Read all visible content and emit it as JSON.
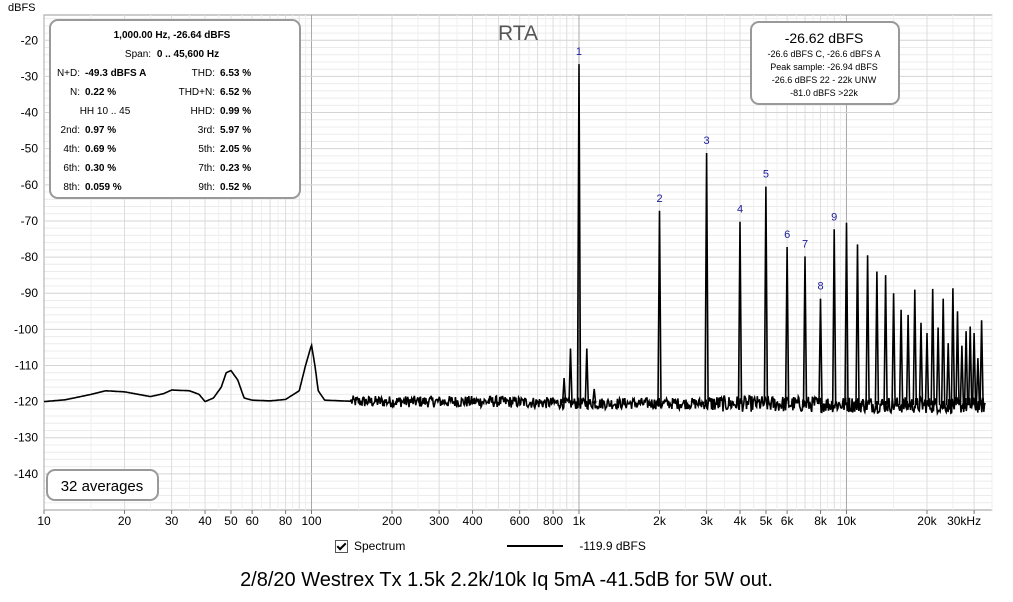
{
  "chart_data": {
    "type": "line",
    "title": "RTA",
    "ylabel": "dBFS",
    "xlabel": "",
    "x_scale": "log",
    "xlim": [
      10,
      35000
    ],
    "ylim": [
      -150,
      -13
    ],
    "grid": true,
    "y_ticks": [
      -20,
      -30,
      -40,
      -50,
      -60,
      -70,
      -80,
      -90,
      -100,
      -110,
      -120,
      -130,
      -140
    ],
    "y_tick_labels": [
      "-20",
      "-30",
      "-40",
      "-50",
      "-60",
      "-70",
      "-80",
      "-90",
      "-100",
      "-110",
      "-120",
      "-130",
      "-140"
    ],
    "x_ticks": [
      10,
      20,
      30,
      40,
      50,
      60,
      80,
      100,
      200,
      300,
      400,
      600,
      800,
      1000,
      2000,
      3000,
      4000,
      5000,
      6000,
      8000,
      10000,
      20000,
      30000
    ],
    "x_tick_labels": [
      "10",
      "20",
      "30",
      "40",
      "50",
      "60",
      "80",
      "100",
      "200",
      "300",
      "400",
      "600",
      "800",
      "1k",
      "2k",
      "3k",
      "4k",
      "5k",
      "6k",
      "8k",
      "10k",
      "20k",
      "30kHz"
    ],
    "series": [
      {
        "name": "Spectrum",
        "legend_value": "-119.9 dBFS",
        "color": "#000000",
        "noise_floor": [
          [
            10,
            -120
          ],
          [
            12,
            -119.5
          ],
          [
            15,
            -118
          ],
          [
            17,
            -117
          ],
          [
            20,
            -117.3
          ],
          [
            25,
            -118.6
          ],
          [
            28,
            -117.8
          ],
          [
            30,
            -116.8
          ],
          [
            35,
            -117
          ],
          [
            38,
            -118
          ],
          [
            40,
            -120
          ],
          [
            43,
            -119
          ],
          [
            46,
            -116
          ],
          [
            48,
            -112
          ],
          [
            50,
            -111.4
          ],
          [
            53,
            -114
          ],
          [
            56,
            -119
          ],
          [
            60,
            -119.6
          ],
          [
            70,
            -119.8
          ],
          [
            80,
            -119.4
          ],
          [
            90,
            -117
          ],
          [
            95,
            -110
          ],
          [
            100,
            -104.3
          ],
          [
            103,
            -110
          ],
          [
            106,
            -117
          ],
          [
            112,
            -119.6
          ],
          [
            150,
            -120
          ],
          [
            200,
            -120
          ],
          [
            300,
            -120
          ],
          [
            500,
            -120
          ],
          [
            700,
            -120.3
          ],
          [
            1000,
            -120.5
          ],
          [
            2000,
            -120.5
          ],
          [
            5000,
            -120.6
          ],
          [
            10000,
            -120.8
          ],
          [
            20000,
            -121
          ],
          [
            33000,
            -121
          ]
        ],
        "harmonics": [
          {
            "label": "1",
            "freq": 1000,
            "level": -26.6
          },
          {
            "label": "2",
            "freq": 2000,
            "level": -67.2
          },
          {
            "label": "3",
            "freq": 3000,
            "level": -51.2
          },
          {
            "label": "4",
            "freq": 4000,
            "level": -70.2
          },
          {
            "label": "5",
            "freq": 5000,
            "level": -60.5
          },
          {
            "label": "6",
            "freq": 6000,
            "level": -77.2
          },
          {
            "label": "7",
            "freq": 7000,
            "level": -79.8
          },
          {
            "label": "8",
            "freq": 8000,
            "level": -91.5
          },
          {
            "label": "9",
            "freq": 9000,
            "level": -72.3
          }
        ],
        "higher_harmonics": [
          [
            10000,
            -70.5
          ],
          [
            11000,
            -76.5
          ],
          [
            12000,
            -79.5
          ],
          [
            13000,
            -84
          ],
          [
            14000,
            -85
          ],
          [
            15000,
            -90
          ],
          [
            16000,
            -94.6
          ],
          [
            17000,
            -96
          ],
          [
            18000,
            -89
          ],
          [
            19000,
            -98.2
          ],
          [
            20000,
            -101
          ],
          [
            21000,
            -88.8
          ],
          [
            22000,
            -99.5
          ],
          [
            23000,
            -91.5
          ],
          [
            24000,
            -103.8
          ],
          [
            25000,
            -88.6
          ],
          [
            26000,
            -95
          ],
          [
            27000,
            -104.5
          ],
          [
            28000,
            -100.5
          ],
          [
            29000,
            -99.2
          ],
          [
            30000,
            -101
          ],
          [
            31000,
            -108
          ],
          [
            32000,
            -97.5
          ]
        ],
        "other_peaks": [
          [
            930,
            -105.3
          ],
          [
            1070,
            -105.3
          ],
          [
            880,
            -113.5
          ],
          [
            1140,
            -116.5
          ]
        ]
      }
    ],
    "legend_placement": "bottom-center"
  },
  "stats_box": {
    "line1": "1,000.00 Hz, -26.64 dBFS",
    "span_label": "Span:",
    "span_value": "0 .. 45,600 Hz",
    "rows": [
      {
        "l_label": "N+D:",
        "l_value": "-49.3 dBFS A",
        "r_label": "THD:",
        "r_value": "6.53 %"
      },
      {
        "l_label": "N:",
        "l_value": "0.22 %",
        "r_label": "THD+N:",
        "r_value": "6.52 %"
      },
      {
        "l_label": "HH 10 .. 45",
        "l_value": "",
        "r_label": "HHD:",
        "r_value": "0.99 %"
      },
      {
        "l_label": "2nd:",
        "l_value": "0.97 %",
        "r_label": "3rd:",
        "r_value": "5.97 %"
      },
      {
        "l_label": "4th:",
        "l_value": "0.69 %",
        "r_label": "5th:",
        "r_value": "2.05 %"
      },
      {
        "l_label": "6th:",
        "l_value": "0.30 %",
        "r_label": "7th:",
        "r_value": "0.23 %"
      },
      {
        "l_label": "8th:",
        "l_value": "0.059 %",
        "r_label": "9th:",
        "r_value": "0.52 %"
      }
    ]
  },
  "level_box": {
    "big": "-26.62 dBFS",
    "lines": [
      "-26.6 dBFS C, -26.6 dBFS A",
      "Peak sample: -26.94 dBFS",
      "-26.6 dBFS 22 - 22k UNW",
      "-81.0 dBFS >22k"
    ]
  },
  "averages_label": "32 averages",
  "legend": {
    "checkbox_label": "Spectrum",
    "value": "-119.9 dBFS"
  },
  "caption": "2/8/20 Westrex Tx 1.5k 2.2k/10k Iq 5mA -41.5dB for 5W out."
}
